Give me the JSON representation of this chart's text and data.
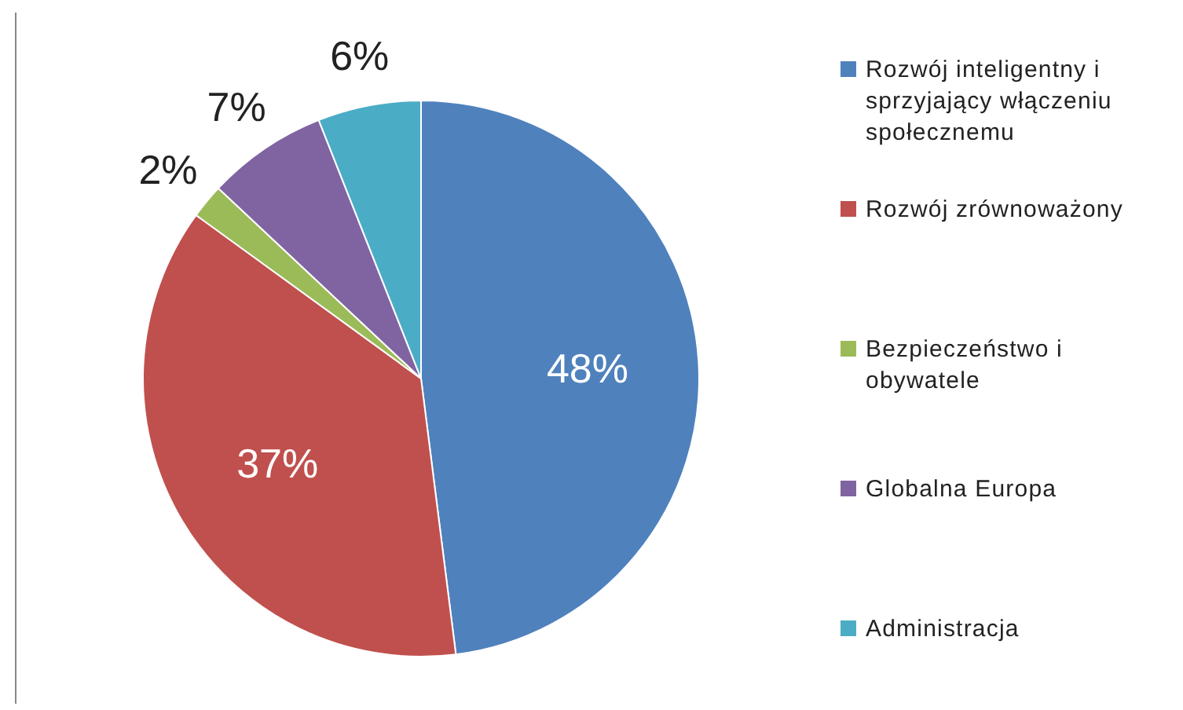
{
  "chart_data": {
    "type": "pie",
    "categories": [
      "Rozwój inteligentny i sprzyjający włączeniu społecznemu",
      "Rozwój zrównoważony",
      "Bezpieczeństwo i obywatele",
      "Globalna Europa",
      "Administracja"
    ],
    "values": [
      48,
      37,
      2,
      7,
      6
    ],
    "colors": [
      "#4f81bd",
      "#c0504d",
      "#9bbb59",
      "#8064a2",
      "#4bacc6"
    ],
    "value_labels": [
      "48%",
      "37%",
      "2%",
      "7%",
      "6%"
    ],
    "legend": "right"
  }
}
